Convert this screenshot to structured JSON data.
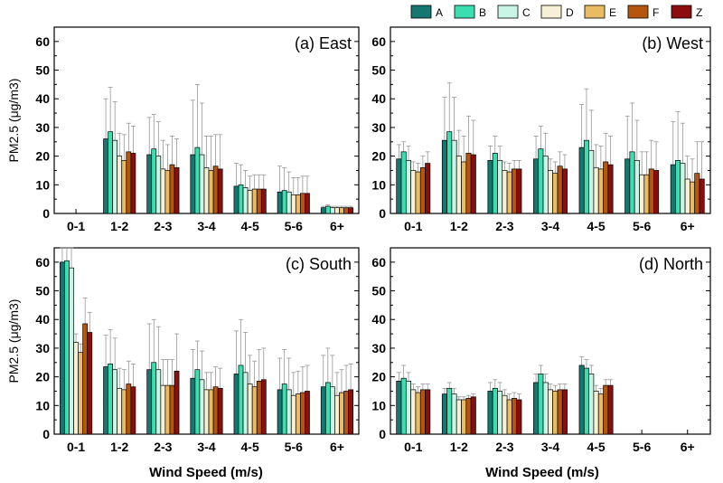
{
  "chart_data": {
    "type": "bar",
    "ylabel": "PM2.5 (μg/m3)",
    "xlabel": "Wind Speed (m/s)",
    "ylim": [
      0,
      65
    ],
    "yticks": [
      0,
      10,
      20,
      30,
      40,
      50,
      60
    ],
    "categories": [
      "0-1",
      "1-2",
      "2-3",
      "3-4",
      "4-5",
      "5-6",
      "6+"
    ],
    "legend": {
      "position": "top-right",
      "series": [
        "A",
        "B",
        "C",
        "D",
        "E",
        "F",
        "Z"
      ],
      "colors": [
        "#147870",
        "#3bdeb0",
        "#c8f5e6",
        "#f7efd6",
        "#e9bb64",
        "#b5560f",
        "#8c0d0d"
      ]
    },
    "panels": [
      {
        "title": "(a) East",
        "values": [
          [
            null,
            null,
            null,
            null,
            null,
            null,
            null
          ],
          [
            26,
            28.5,
            25.5,
            20,
            18.5,
            21.5,
            21
          ],
          [
            20.5,
            22.5,
            20,
            15.5,
            15,
            17,
            16
          ],
          [
            20.5,
            23,
            20.5,
            16,
            15,
            16.5,
            15.5
          ],
          [
            9.5,
            10,
            9,
            8,
            8.5,
            8.5,
            8.5
          ],
          [
            7.5,
            8,
            7.5,
            6.5,
            6.5,
            7,
            7
          ],
          [
            2,
            2.5,
            2,
            2,
            2,
            2,
            2
          ]
        ],
        "errors": [
          [
            null,
            null,
            null,
            null,
            null,
            null,
            null
          ],
          [
            14,
            15.5,
            13.5,
            8,
            9,
            10,
            9.5
          ],
          [
            13,
            12,
            12,
            10,
            9,
            10,
            10
          ],
          [
            19,
            22,
            18,
            11,
            12,
            11,
            12
          ],
          [
            8,
            7,
            6,
            5,
            5,
            5,
            5
          ],
          [
            9,
            8,
            7,
            6,
            6,
            6,
            6
          ],
          [
            0.5,
            0.5,
            0.5,
            0.5,
            0.5,
            0.5,
            0.5
          ]
        ]
      },
      {
        "title": "(b) West",
        "values": [
          [
            19,
            21.5,
            18.5,
            15,
            14.5,
            16,
            17.5
          ],
          [
            25.5,
            28.5,
            25.5,
            20,
            18,
            21,
            20.5
          ],
          [
            18.5,
            21,
            18.5,
            15,
            14.5,
            15.5,
            15.5
          ],
          [
            19,
            22.5,
            20,
            15,
            14,
            16.5,
            15.5
          ],
          [
            23,
            25.5,
            22,
            16,
            15.5,
            18,
            17
          ],
          [
            19,
            21.5,
            18.5,
            13.5,
            13.5,
            15.5,
            15
          ],
          [
            17,
            18.5,
            17.5,
            12,
            11,
            14,
            12
          ]
        ],
        "errors": [
          [
            5,
            3.5,
            5,
            3,
            3,
            4,
            4
          ],
          [
            15,
            17,
            15,
            9,
            9,
            13,
            12
          ],
          [
            5,
            6,
            5,
            3,
            3,
            3,
            3
          ],
          [
            8,
            8,
            8,
            4,
            4,
            5,
            5
          ],
          [
            15,
            18,
            14,
            8,
            8,
            10,
            10
          ],
          [
            15,
            17,
            14,
            8,
            8,
            10,
            10
          ],
          [
            15,
            17,
            14,
            8,
            8,
            11,
            13
          ]
        ]
      },
      {
        "title": "(c) South",
        "values": [
          [
            60,
            60.5,
            58,
            32,
            28.5,
            38.5,
            35.5
          ],
          [
            23.5,
            24.5,
            22.5,
            16,
            15.5,
            17.5,
            16.5
          ],
          [
            22.5,
            25,
            22.5,
            17,
            17,
            17,
            22
          ],
          [
            19.5,
            22.5,
            19,
            15.5,
            15.5,
            16.5,
            16
          ],
          [
            21,
            24,
            21.5,
            17.5,
            16.5,
            18.5,
            19
          ],
          [
            15.5,
            17.5,
            15.5,
            13.5,
            14,
            14.5,
            15
          ],
          [
            16.5,
            18,
            16.5,
            13.5,
            14.5,
            15,
            15.5
          ]
        ],
        "errors": [
          [
            15,
            15,
            15,
            3,
            3,
            9,
            7
          ],
          [
            11,
            12,
            11,
            7,
            7,
            8,
            8
          ],
          [
            16,
            15,
            15,
            9,
            9,
            9,
            13
          ],
          [
            10,
            10,
            10,
            6,
            6,
            7,
            7
          ],
          [
            15,
            16,
            14,
            10,
            9,
            11,
            11
          ],
          [
            11,
            12,
            11,
            8,
            8,
            9,
            9
          ],
          [
            11,
            12,
            11,
            8,
            8,
            9,
            9
          ]
        ]
      },
      {
        "title": "(d) North",
        "values": [
          [
            18.5,
            19.5,
            18.5,
            15.5,
            14.5,
            15.5,
            15.5
          ],
          [
            14,
            16,
            14,
            12,
            12,
            12.5,
            13
          ],
          [
            15,
            16,
            15,
            13.5,
            12,
            12.5,
            12
          ],
          [
            18,
            21,
            18,
            15.5,
            15,
            15.5,
            15.5
          ],
          [
            24,
            23,
            21,
            15,
            14,
            17,
            17
          ],
          [
            null,
            null,
            null,
            null,
            null,
            null,
            null
          ],
          [
            null,
            null,
            null,
            null,
            null,
            null,
            null
          ]
        ],
        "errors": [
          [
            3,
            4.5,
            3,
            2,
            2,
            2,
            2
          ],
          [
            2,
            2,
            2,
            1,
            1,
            1,
            1
          ],
          [
            3,
            3,
            3,
            2,
            2,
            2,
            2
          ],
          [
            3,
            3,
            3,
            2,
            2,
            2,
            2
          ],
          [
            3,
            3,
            3,
            2,
            2,
            2,
            2
          ],
          [
            null,
            null,
            null,
            null,
            null,
            null,
            null
          ],
          [
            null,
            null,
            null,
            null,
            null,
            null,
            null
          ]
        ]
      }
    ]
  }
}
